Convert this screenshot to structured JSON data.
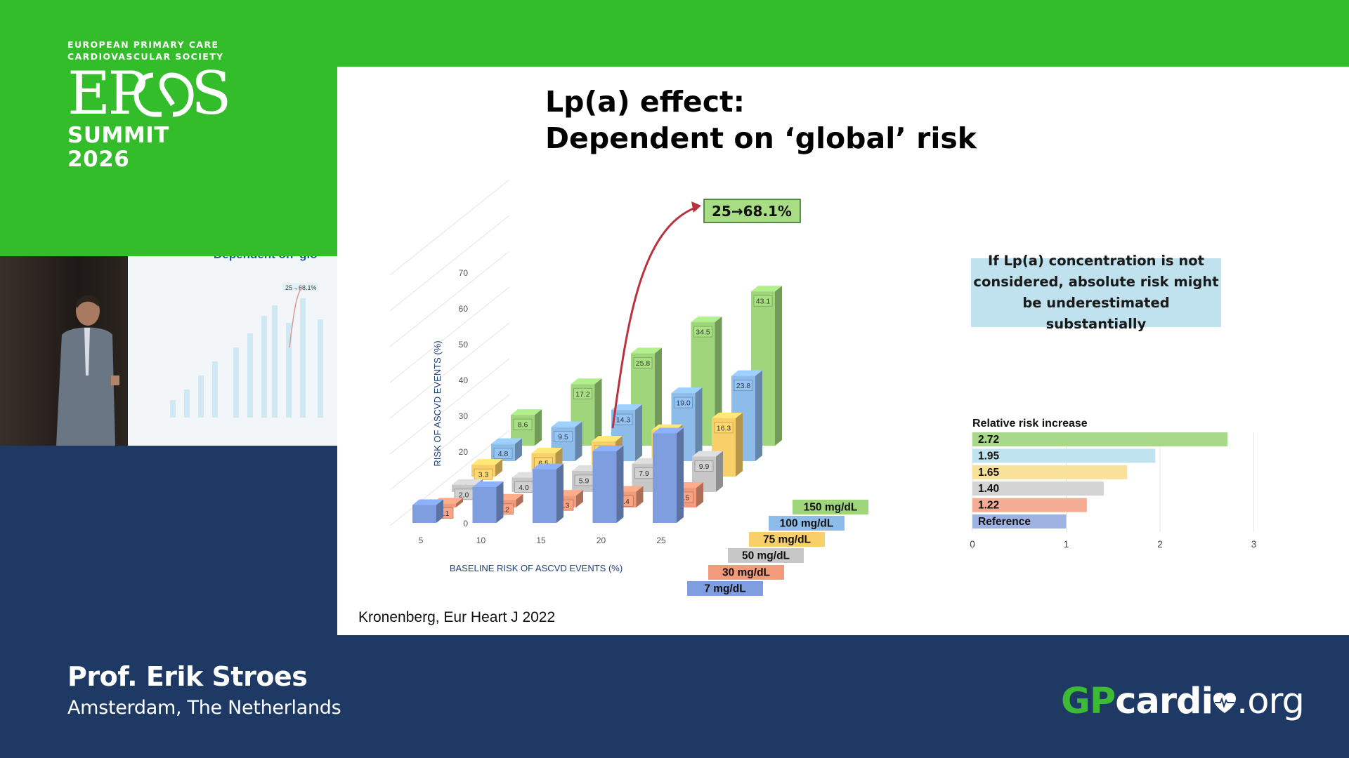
{
  "logo": {
    "line1": "EUROPEAN PRIMARY CARE",
    "line2": "CARDIOVASCULAR SOCIETY",
    "name": "EPCCS",
    "event": "SUMMIT 2026"
  },
  "video": {
    "screen_title": "Dependent on 'glo",
    "mini_label": "25→68.1%"
  },
  "slide": {
    "title_line1": "Lp(a) effect:",
    "title_line2": "Dependent on ‘global’ risk",
    "callout": "If Lp(a) concentration is not considered, absolute risk might be underestimated substantially",
    "citation": "Kronenberg, Eur Heart J 2022"
  },
  "presenter": {
    "name": "Prof. Erik Stroes",
    "location": "Amsterdam, The Netherlands"
  },
  "brand": {
    "gp": "GP",
    "cardio": "cardi",
    "org": ".org"
  },
  "colors": {
    "green_brand": "#34bd2a",
    "navy": "#1e3a64",
    "arrow": "#b8333d"
  },
  "chart_data": [
    {
      "type": "bar",
      "chart_style": "3d-grouped-depth",
      "xlabel": "BASELINE RISK OF ASCVD EVENTS (%)",
      "ylabel": "RISK OF ASCVD EVENTS (%)",
      "categories": [
        "5",
        "10",
        "15",
        "20",
        "25"
      ],
      "yticks": [
        "0",
        "10",
        "20",
        "30",
        "40",
        "50",
        "60",
        "70"
      ],
      "ylim": [
        0,
        70
      ],
      "annotation": "25→68.1%",
      "series": [
        {
          "name": "7 mg/dL",
          "color": "#7f9ee0",
          "values": [
            5,
            10,
            15,
            20,
            25
          ],
          "labels": [
            "",
            "",
            "",
            "",
            ""
          ]
        },
        {
          "name": "30 mg/dL",
          "color": "#f19a7c",
          "values": [
            1.1,
            2.2,
            3.3,
            4.4,
            5.5
          ],
          "labels": [
            "1.1",
            "2.2",
            "3.3",
            "4.4",
            "5.5"
          ]
        },
        {
          "name": "50 mg/dL",
          "color": "#c7c7c7",
          "values": [
            2.0,
            4.0,
            5.9,
            7.9,
            9.9
          ],
          "labels": [
            "2.0",
            "4.0",
            "5.9",
            "7.9",
            "9.9"
          ]
        },
        {
          "name": "75 mg/dL",
          "color": "#f9cf6a",
          "values": [
            3.3,
            6.5,
            9.8,
            13.0,
            16.3
          ],
          "labels": [
            "3.3",
            "6.5",
            "9.8",
            "13.0",
            "16.3"
          ]
        },
        {
          "name": "100 mg/dL",
          "color": "#8dbbea",
          "values": [
            4.8,
            9.5,
            14.3,
            19.0,
            23.8
          ],
          "labels": [
            "4.8",
            "9.5",
            "14.3",
            "19.0",
            "23.8"
          ]
        },
        {
          "name": "150 mg/dL",
          "color": "#9fd67c",
          "values": [
            8.6,
            17.2,
            25.8,
            34.5,
            43.1
          ],
          "labels": [
            "8.6",
            "17.2",
            "25.8",
            "34.5",
            "43.1"
          ]
        }
      ]
    },
    {
      "type": "bar",
      "orientation": "horizontal",
      "title": "Relative risk increase",
      "xticks": [
        "0",
        "1",
        "2",
        "3"
      ],
      "xlim": [
        0,
        3
      ],
      "bars": [
        {
          "label": "2.72",
          "value": 2.72,
          "color": "#a8d98a"
        },
        {
          "label": "1.95",
          "value": 1.95,
          "color": "#bfe3ef"
        },
        {
          "label": "1.65",
          "value": 1.65,
          "color": "#fae19a"
        },
        {
          "label": "1.40",
          "value": 1.4,
          "color": "#d4d4d4"
        },
        {
          "label": "1.22",
          "value": 1.22,
          "color": "#f4ad94"
        },
        {
          "label": "Reference",
          "value": 1.0,
          "color": "#9fb3e3"
        }
      ]
    }
  ]
}
